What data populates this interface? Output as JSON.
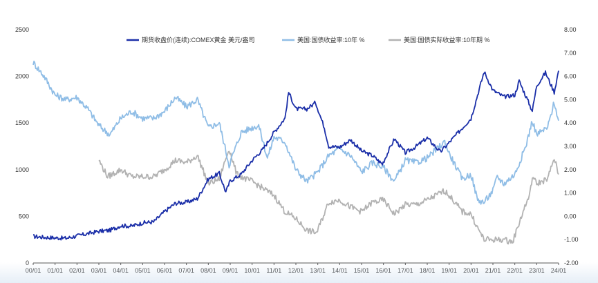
{
  "chart_data": {
    "type": "line",
    "x_ticks": [
      "00/01",
      "01/01",
      "02/01",
      "03/01",
      "04/01",
      "05/01",
      "06/01",
      "07/01",
      "08/01",
      "09/01",
      "10/01",
      "11/01",
      "12/01",
      "13/01",
      "14/01",
      "15/01",
      "16/01",
      "17/01",
      "18/01",
      "19/01",
      "20/01",
      "21/01",
      "22/01",
      "23/01",
      "24/01"
    ],
    "y_left": {
      "ticks": [
        "0",
        "500",
        "1000",
        "1500",
        "2000",
        "2500"
      ],
      "ylim": [
        0,
        2500
      ]
    },
    "y_right": {
      "ticks": [
        "-2.00",
        "-1.00",
        "0.00",
        "1.00",
        "2.00",
        "3.00",
        "4.00",
        "5.00",
        "6.00",
        "7.00",
        "8.00"
      ],
      "ylim": [
        -2,
        8
      ]
    },
    "grid": false,
    "legend_position": "top",
    "series": [
      {
        "name": "期货收盘价(连续):COMEX黄金  美元/盎司",
        "axis": "left",
        "color": "#1a2ea8",
        "points": [
          [
            2000.0,
            285
          ],
          [
            2000.5,
            275
          ],
          [
            2001.0,
            270
          ],
          [
            2001.5,
            265
          ],
          [
            2002.0,
            290
          ],
          [
            2002.5,
            315
          ],
          [
            2003.0,
            340
          ],
          [
            2003.5,
            350
          ],
          [
            2004.0,
            400
          ],
          [
            2004.5,
            395
          ],
          [
            2005.0,
            430
          ],
          [
            2005.5,
            440
          ],
          [
            2006.0,
            550
          ],
          [
            2006.5,
            640
          ],
          [
            2007.0,
            650
          ],
          [
            2007.5,
            690
          ],
          [
            2008.0,
            900
          ],
          [
            2008.5,
            960
          ],
          [
            2008.8,
            760
          ],
          [
            2009.0,
            880
          ],
          [
            2009.5,
            950
          ],
          [
            2010.0,
            1100
          ],
          [
            2010.5,
            1220
          ],
          [
            2011.0,
            1400
          ],
          [
            2011.5,
            1550
          ],
          [
            2011.67,
            1830
          ],
          [
            2012.0,
            1650
          ],
          [
            2012.5,
            1650
          ],
          [
            2012.9,
            1720
          ],
          [
            2013.3,
            1450
          ],
          [
            2013.5,
            1250
          ],
          [
            2014.0,
            1240
          ],
          [
            2014.5,
            1320
          ],
          [
            2015.0,
            1200
          ],
          [
            2015.5,
            1150
          ],
          [
            2015.95,
            1060
          ],
          [
            2016.5,
            1330
          ],
          [
            2017.0,
            1180
          ],
          [
            2017.5,
            1250
          ],
          [
            2018.0,
            1340
          ],
          [
            2018.6,
            1190
          ],
          [
            2019.0,
            1290
          ],
          [
            2019.5,
            1420
          ],
          [
            2020.0,
            1550
          ],
          [
            2020.6,
            2050
          ],
          [
            2021.0,
            1850
          ],
          [
            2021.5,
            1780
          ],
          [
            2022.0,
            1800
          ],
          [
            2022.2,
            1950
          ],
          [
            2022.8,
            1630
          ],
          [
            2023.0,
            1900
          ],
          [
            2023.4,
            2040
          ],
          [
            2023.8,
            1830
          ],
          [
            2024.0,
            2060
          ]
        ]
      },
      {
        "name": "美国:国债收益率:10年  %",
        "axis": "right",
        "color": "#8fbde6",
        "points": [
          [
            2000.0,
            6.6
          ],
          [
            2000.5,
            6.0
          ],
          [
            2001.0,
            5.2
          ],
          [
            2001.5,
            5.0
          ],
          [
            2002.0,
            5.1
          ],
          [
            2002.5,
            4.6
          ],
          [
            2003.0,
            3.9
          ],
          [
            2003.5,
            3.5
          ],
          [
            2004.0,
            4.2
          ],
          [
            2004.5,
            4.5
          ],
          [
            2005.0,
            4.2
          ],
          [
            2005.5,
            4.2
          ],
          [
            2006.0,
            4.5
          ],
          [
            2006.5,
            5.1
          ],
          [
            2007.0,
            4.7
          ],
          [
            2007.5,
            5.0
          ],
          [
            2008.0,
            3.8
          ],
          [
            2008.5,
            4.0
          ],
          [
            2008.95,
            2.2
          ],
          [
            2009.5,
            3.6
          ],
          [
            2010.0,
            3.8
          ],
          [
            2010.3,
            3.9
          ],
          [
            2010.7,
            2.5
          ],
          [
            2011.0,
            3.4
          ],
          [
            2011.5,
            3.2
          ],
          [
            2012.0,
            2.0
          ],
          [
            2012.5,
            1.5
          ],
          [
            2013.0,
            1.9
          ],
          [
            2013.5,
            2.6
          ],
          [
            2014.0,
            2.9
          ],
          [
            2014.5,
            2.6
          ],
          [
            2015.0,
            1.9
          ],
          [
            2015.5,
            2.3
          ],
          [
            2016.0,
            2.1
          ],
          [
            2016.5,
            1.5
          ],
          [
            2017.0,
            2.4
          ],
          [
            2017.5,
            2.3
          ],
          [
            2018.0,
            2.5
          ],
          [
            2018.8,
            3.2
          ],
          [
            2019.0,
            2.7
          ],
          [
            2019.6,
            1.6
          ],
          [
            2020.0,
            1.8
          ],
          [
            2020.3,
            0.7
          ],
          [
            2020.6,
            0.6
          ],
          [
            2021.0,
            1.1
          ],
          [
            2021.2,
            1.7
          ],
          [
            2021.5,
            1.4
          ],
          [
            2022.0,
            1.8
          ],
          [
            2022.5,
            3.0
          ],
          [
            2022.8,
            4.1
          ],
          [
            2023.0,
            3.5
          ],
          [
            2023.5,
            3.8
          ],
          [
            2023.8,
            4.9
          ],
          [
            2024.0,
            4.1
          ]
        ]
      },
      {
        "name": "美国:国债实际收益率:10年期  %",
        "axis": "right",
        "color": "#b2b2b2",
        "points": [
          [
            2003.0,
            2.4
          ],
          [
            2003.4,
            1.7
          ],
          [
            2004.0,
            2.0
          ],
          [
            2004.5,
            1.7
          ],
          [
            2005.0,
            1.7
          ],
          [
            2005.5,
            1.7
          ],
          [
            2006.0,
            2.0
          ],
          [
            2006.5,
            2.4
          ],
          [
            2007.0,
            2.3
          ],
          [
            2007.5,
            2.6
          ],
          [
            2008.0,
            1.4
          ],
          [
            2008.5,
            1.6
          ],
          [
            2008.95,
            2.9
          ],
          [
            2009.3,
            1.8
          ],
          [
            2009.7,
            1.6
          ],
          [
            2010.0,
            1.5
          ],
          [
            2010.5,
            1.2
          ],
          [
            2011.0,
            0.9
          ],
          [
            2011.5,
            0.2
          ],
          [
            2012.0,
            -0.1
          ],
          [
            2012.5,
            -0.6
          ],
          [
            2012.95,
            -0.7
          ],
          [
            2013.5,
            0.6
          ],
          [
            2014.0,
            0.7
          ],
          [
            2014.5,
            0.4
          ],
          [
            2015.0,
            0.2
          ],
          [
            2015.5,
            0.6
          ],
          [
            2016.0,
            0.7
          ],
          [
            2016.5,
            0.1
          ],
          [
            2017.0,
            0.5
          ],
          [
            2017.5,
            0.5
          ],
          [
            2018.0,
            0.7
          ],
          [
            2018.8,
            1.1
          ],
          [
            2019.0,
            0.9
          ],
          [
            2019.6,
            0.2
          ],
          [
            2020.0,
            0.1
          ],
          [
            2020.3,
            -0.5
          ],
          [
            2020.6,
            -1.0
          ],
          [
            2021.0,
            -1.0
          ],
          [
            2021.5,
            -1.0
          ],
          [
            2021.9,
            -1.1
          ],
          [
            2022.3,
            0.0
          ],
          [
            2022.7,
            1.0
          ],
          [
            2022.8,
            1.7
          ],
          [
            2023.0,
            1.4
          ],
          [
            2023.5,
            1.6
          ],
          [
            2023.8,
            2.5
          ],
          [
            2024.0,
            1.8
          ]
        ]
      }
    ]
  }
}
